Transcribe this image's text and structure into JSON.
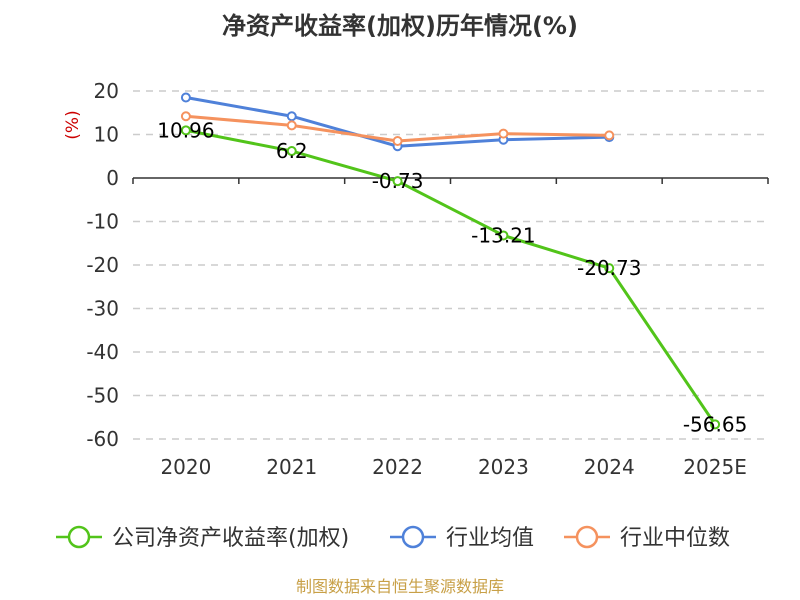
{
  "chart_data": {
    "type": "line",
    "title": "净资产收益率(加权)历年情况(%)",
    "ylabel": "(%)",
    "xlabel": "",
    "categories": [
      "2020",
      "2021",
      "2022",
      "2023",
      "2024",
      "2025E"
    ],
    "ylim": [
      -60,
      20
    ],
    "yticks": [
      20,
      10,
      0,
      -10,
      -20,
      -30,
      -40,
      -50,
      -60
    ],
    "grid": true,
    "legend_position": "bottom",
    "series": [
      {
        "name": "公司净资产收益率(加权)",
        "color": "#52c41a",
        "values": [
          10.96,
          6.2,
          -0.73,
          -13.21,
          -20.73,
          -56.65
        ],
        "data_labels": [
          "10.96",
          "6.2",
          "-0.73",
          "-13.21",
          "-20.73",
          "-56.65"
        ]
      },
      {
        "name": "行业均值",
        "color": "#4f81d9",
        "values": [
          18.5,
          14.2,
          7.3,
          8.8,
          9.4,
          null
        ]
      },
      {
        "name": "行业中位数",
        "color": "#f5925e",
        "values": [
          14.2,
          12.1,
          8.5,
          10.2,
          9.8,
          null
        ]
      }
    ]
  },
  "source": "制图数据来自恒生聚源数据库"
}
